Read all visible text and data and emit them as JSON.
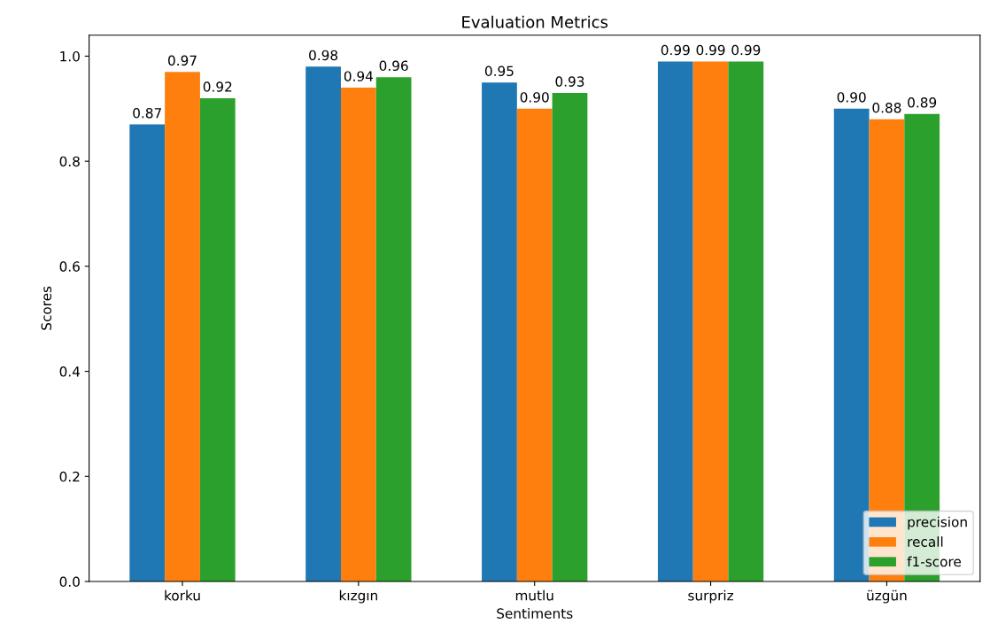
{
  "chart_data": {
    "type": "bar",
    "title": "Evaluation Metrics",
    "xlabel": "Sentiments",
    "ylabel": "Scores",
    "categories": [
      "korku",
      "kızgın",
      "mutlu",
      "surpriz",
      "üzgün"
    ],
    "series": [
      {
        "name": "precision",
        "color": "#1f77b4",
        "values": [
          0.87,
          0.98,
          0.95,
          0.99,
          0.9
        ],
        "value_labels": [
          "0.87",
          "0.98",
          "0.95",
          "0.99",
          "0.90"
        ]
      },
      {
        "name": "recall",
        "color": "#ff7f0e",
        "values": [
          0.97,
          0.94,
          0.9,
          0.99,
          0.88
        ],
        "value_labels": [
          "0.97",
          "0.94",
          "0.90",
          "0.99",
          "0.88"
        ]
      },
      {
        "name": "f1-score",
        "color": "#2ca02c",
        "values": [
          0.92,
          0.96,
          0.93,
          0.99,
          0.89
        ],
        "value_labels": [
          "0.92",
          "0.96",
          "0.93",
          "0.99",
          "0.89"
        ]
      }
    ],
    "ylim": [
      0,
      1.04
    ],
    "yticks": [
      {
        "value": 0,
        "label": "0.0"
      },
      0.2,
      0.4,
      0.6,
      0.8,
      {
        "value": 1,
        "label": "1.0"
      }
    ],
    "grid": false,
    "legend": "bottom right"
  }
}
